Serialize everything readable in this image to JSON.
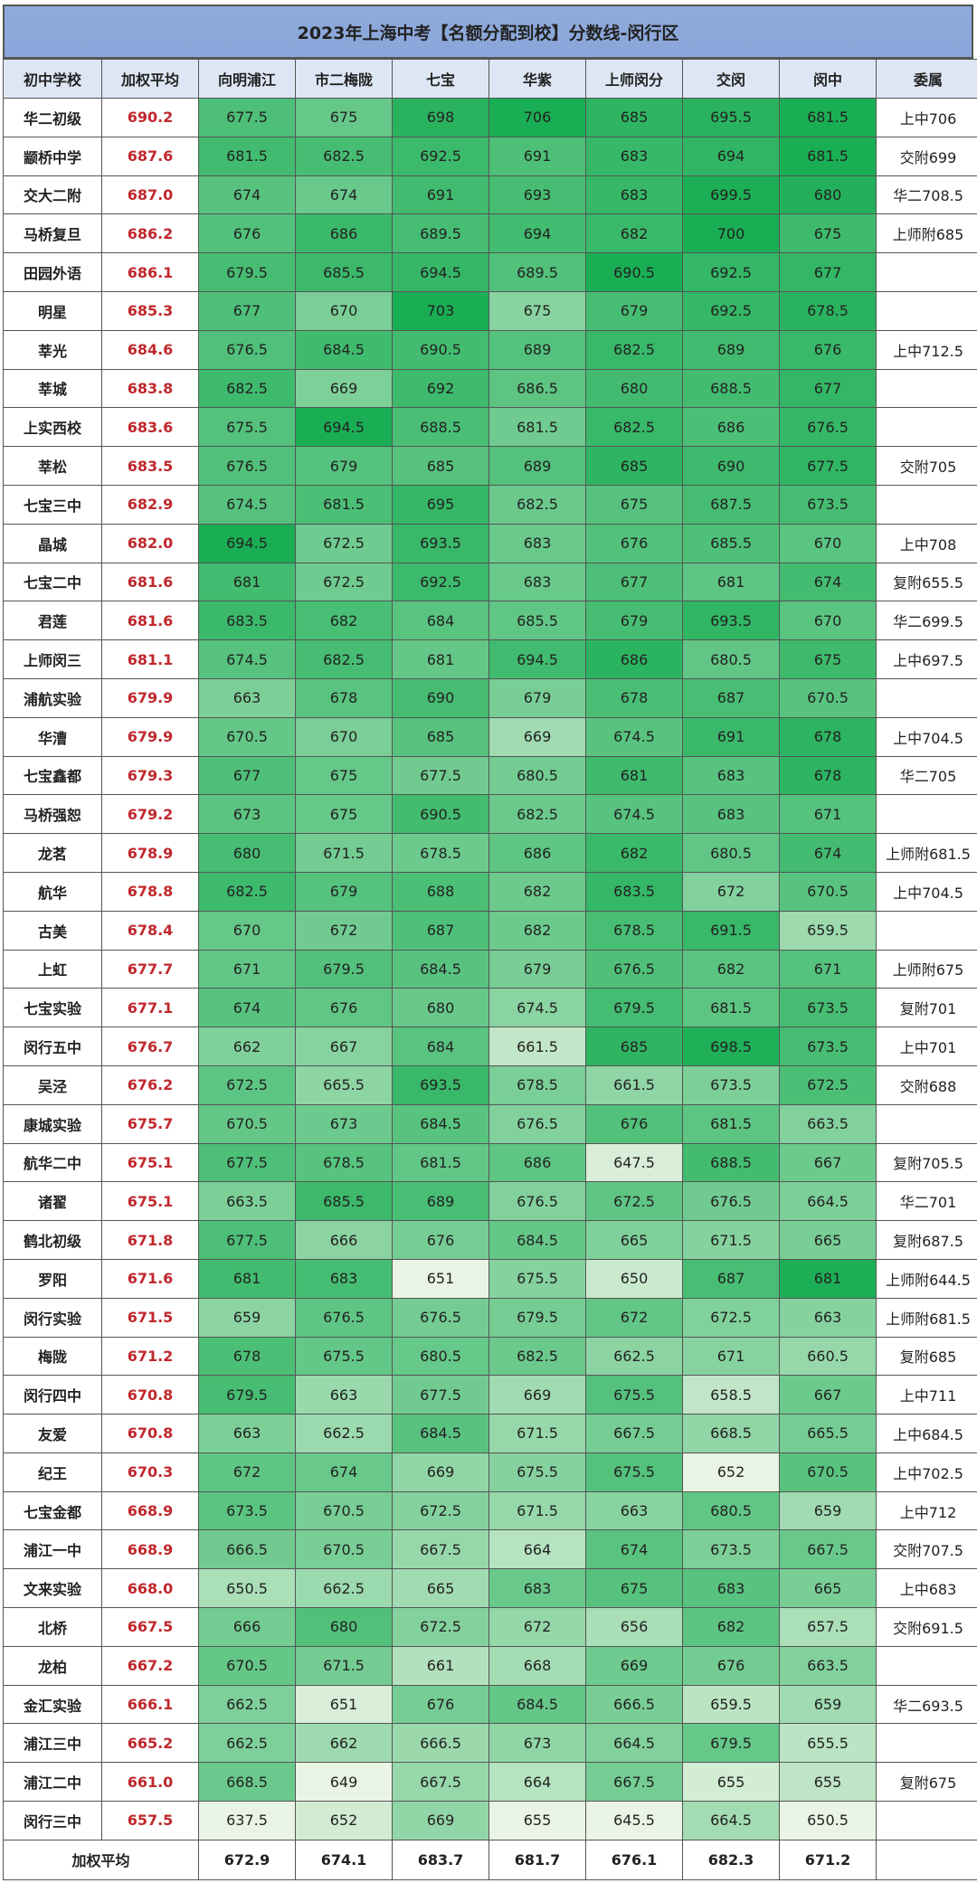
{
  "chart_data": {
    "type": "heatmap",
    "title": "2023年上海中考【名额分配到校】分数线-闵行区",
    "columns": [
      "初中学校",
      "加权平均",
      "向明浦江",
      "市二梅陇",
      "七宝",
      "华紫",
      "上师闵分",
      "交闵",
      "闵中",
      "委属"
    ],
    "rows": [
      [
        "华二初级",
        "690.2",
        677.5,
        675,
        698,
        706,
        685,
        695.5,
        681.5,
        "上中706"
      ],
      [
        "颛桥中学",
        "687.6",
        681.5,
        682.5,
        692.5,
        691,
        683,
        694,
        681.5,
        "交附699"
      ],
      [
        "交大二附",
        "687.0",
        674,
        674,
        691,
        693,
        683,
        699.5,
        680,
        "华二708.5"
      ],
      [
        "马桥复旦",
        "686.2",
        676,
        686,
        689.5,
        694,
        682,
        700,
        675,
        "上师附685"
      ],
      [
        "田园外语",
        "686.1",
        679.5,
        685.5,
        694.5,
        689.5,
        690.5,
        692.5,
        677,
        ""
      ],
      [
        "明星",
        "685.3",
        677,
        670,
        703,
        675,
        679,
        692.5,
        678.5,
        ""
      ],
      [
        "莘光",
        "684.6",
        676.5,
        684.5,
        690.5,
        689,
        682.5,
        689,
        676,
        "上中712.5"
      ],
      [
        "莘城",
        "683.8",
        682.5,
        669,
        692,
        686.5,
        680,
        688.5,
        677,
        ""
      ],
      [
        "上实西校",
        "683.6",
        675.5,
        694.5,
        688.5,
        681.5,
        682.5,
        686,
        676.5,
        ""
      ],
      [
        "莘松",
        "683.5",
        676.5,
        679,
        685,
        689,
        685,
        690,
        677.5,
        "交附705"
      ],
      [
        "七宝三中",
        "682.9",
        674.5,
        681.5,
        695,
        682.5,
        675,
        687.5,
        673.5,
        ""
      ],
      [
        "晶城",
        "682.0",
        694.5,
        672.5,
        693.5,
        683,
        676,
        685.5,
        670,
        "上中708"
      ],
      [
        "七宝二中",
        "681.6",
        681,
        672.5,
        692.5,
        683,
        677,
        681,
        674,
        "复附655.5"
      ],
      [
        "君莲",
        "681.6",
        683.5,
        682,
        684,
        685.5,
        679,
        693.5,
        670,
        "华二699.5"
      ],
      [
        "上师闵三",
        "681.1",
        674.5,
        682.5,
        681,
        694.5,
        686,
        680.5,
        675,
        "上中697.5"
      ],
      [
        "浦航实验",
        "679.9",
        663,
        678,
        690,
        679,
        678,
        687,
        670.5,
        ""
      ],
      [
        "华漕",
        "679.9",
        670.5,
        670,
        685,
        669,
        674.5,
        691,
        678,
        "上中704.5"
      ],
      [
        "七宝鑫都",
        "679.3",
        677,
        675,
        677.5,
        680.5,
        681,
        683,
        678,
        "华二705"
      ],
      [
        "马桥强恕",
        "679.2",
        673,
        675,
        690.5,
        682.5,
        674.5,
        683,
        671,
        ""
      ],
      [
        "龙茗",
        "678.9",
        680,
        671.5,
        678.5,
        686,
        682,
        680.5,
        674,
        "上师附681.5"
      ],
      [
        "航华",
        "678.8",
        682.5,
        679,
        688,
        682,
        683.5,
        672,
        670.5,
        "上中704.5"
      ],
      [
        "古美",
        "678.4",
        670,
        672,
        687,
        682,
        678.5,
        691.5,
        659.5,
        ""
      ],
      [
        "上虹",
        "677.7",
        671,
        679.5,
        684.5,
        679,
        676.5,
        682,
        671,
        "上师附675"
      ],
      [
        "七宝实验",
        "677.1",
        674,
        676,
        680,
        674.5,
        679.5,
        681.5,
        673.5,
        "复附701"
      ],
      [
        "闵行五中",
        "676.7",
        662,
        667,
        684,
        661.5,
        685,
        698.5,
        673.5,
        "上中701"
      ],
      [
        "吴泾",
        "676.2",
        672.5,
        665.5,
        693.5,
        678.5,
        661.5,
        673.5,
        672.5,
        "交附688"
      ],
      [
        "康城实验",
        "675.7",
        670.5,
        673,
        684.5,
        676.5,
        676,
        681.5,
        663.5,
        ""
      ],
      [
        "航华二中",
        "675.1",
        677.5,
        678.5,
        681.5,
        686,
        647.5,
        688.5,
        667,
        "复附705.5"
      ],
      [
        "诸翟",
        "675.1",
        663.5,
        685.5,
        689,
        676.5,
        672.5,
        676.5,
        664.5,
        "华二701"
      ],
      [
        "鹤北初级",
        "671.8",
        677.5,
        666,
        676,
        684.5,
        665,
        671.5,
        665,
        "复附687.5"
      ],
      [
        "罗阳",
        "671.6",
        681,
        683,
        651,
        675.5,
        650,
        687,
        681,
        "上师附644.5"
      ],
      [
        "闵行实验",
        "671.5",
        659,
        676.5,
        676.5,
        679.5,
        672,
        672.5,
        663,
        "上师附681.5"
      ],
      [
        "梅陇",
        "671.2",
        678,
        675.5,
        680.5,
        682.5,
        662.5,
        671,
        660.5,
        "复附685"
      ],
      [
        "闵行四中",
        "670.8",
        679.5,
        663,
        677.5,
        669,
        675.5,
        658.5,
        667,
        "上中711"
      ],
      [
        "友爱",
        "670.8",
        663,
        662.5,
        684.5,
        671.5,
        667.5,
        668.5,
        665.5,
        "上中684.5"
      ],
      [
        "纪王",
        "670.3",
        672,
        674,
        669,
        675.5,
        675.5,
        652,
        670.5,
        "上中702.5"
      ],
      [
        "七宝金都",
        "668.9",
        673.5,
        670.5,
        672.5,
        671.5,
        663,
        680.5,
        659,
        "上中712"
      ],
      [
        "浦江一中",
        "668.9",
        666.5,
        670.5,
        667.5,
        664,
        674,
        673.5,
        667.5,
        "交附707.5"
      ],
      [
        "文来实验",
        "668.0",
        650.5,
        662.5,
        665,
        683,
        675,
        683,
        665,
        "上中683"
      ],
      [
        "北桥",
        "667.5",
        666,
        680,
        672.5,
        672,
        656,
        682,
        657.5,
        "交附691.5"
      ],
      [
        "龙柏",
        "667.2",
        670.5,
        671.5,
        661,
        668,
        669,
        676,
        663.5,
        ""
      ],
      [
        "金汇实验",
        "666.1",
        662.5,
        651,
        676,
        684.5,
        666.5,
        659.5,
        659,
        "华二693.5"
      ],
      [
        "浦江三中",
        "665.2",
        662.5,
        662,
        666.5,
        673,
        664.5,
        679.5,
        655.5,
        ""
      ],
      [
        "浦江二中",
        "661.0",
        668.5,
        649,
        667.5,
        664,
        667.5,
        655,
        655,
        "复附675"
      ],
      [
        "闵行三中",
        "657.5",
        637.5,
        652,
        669,
        655,
        645.5,
        664.5,
        650.5,
        ""
      ]
    ],
    "footer": {
      "label": "加权平均",
      "values": [
        "672.9",
        "674.1",
        "683.7",
        "681.7",
        "676.1",
        "682.3",
        "671.2"
      ]
    },
    "colors": {
      "low": "#eaf4e4",
      "high": "#1aae54",
      "avg_text": "#c0282d",
      "title_bg": "#8faadc",
      "header_bg": "#dde6f4"
    }
  }
}
